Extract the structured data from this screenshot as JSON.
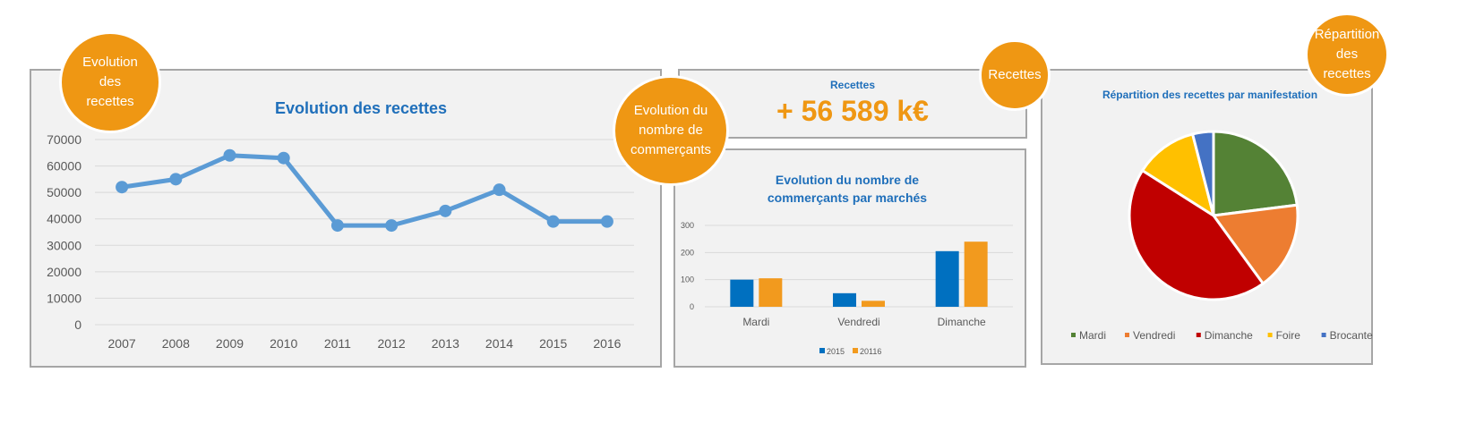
{
  "badges": {
    "recettes_evolution": "Evolution des recettes",
    "commercants": "Evolution du nombre de commerçants",
    "recettes": "Recettes",
    "repartition": "Répartition des recettes"
  },
  "kpi": {
    "label": "Recettes",
    "value": "+ 56 589 k€"
  },
  "colors": {
    "accent": "#ef9713",
    "title": "#1f6fba",
    "line": "#5b9bd5"
  },
  "chart_data": [
    {
      "type": "line",
      "title": "Evolution des recettes",
      "x": [
        "2007",
        "2008",
        "2009",
        "2010",
        "2011",
        "2012",
        "2013",
        "2014",
        "2015",
        "2016"
      ],
      "values": [
        52000,
        55000,
        64000,
        63000,
        37500,
        37500,
        43000,
        51000,
        39000,
        39000
      ],
      "ylim": [
        0,
        70000
      ],
      "yticks": [
        0,
        10000,
        20000,
        30000,
        40000,
        50000,
        60000,
        70000
      ],
      "grid": true
    },
    {
      "type": "bar",
      "title_lines": [
        "Evolution du nombre de",
        "commerçants par marchés"
      ],
      "categories": [
        "Mardi",
        "Vendredi",
        "Dimanche"
      ],
      "series": [
        {
          "name": "2015",
          "values": [
            100,
            50,
            205
          ],
          "color": "#0070c0"
        },
        {
          "name": "20116",
          "values": [
            105,
            22,
            240
          ],
          "color": "#f29a1e"
        }
      ],
      "ylim": [
        0,
        300
      ],
      "yticks": [
        0,
        100,
        200,
        300
      ],
      "legend": "bottom",
      "grid": true
    },
    {
      "type": "pie",
      "title": "Répartition des recettes par manifestation",
      "slices": [
        {
          "label": "Mardi",
          "value": 23,
          "color": "#548235"
        },
        {
          "label": "Vendredi",
          "value": 17,
          "color": "#ed7d31"
        },
        {
          "label": "Dimanche",
          "value": 44,
          "color": "#c00000"
        },
        {
          "label": "Foire",
          "value": 12,
          "color": "#ffc000"
        },
        {
          "label": "Brocante",
          "value": 4,
          "color": "#4472c4"
        }
      ],
      "legend": "bottom"
    }
  ]
}
